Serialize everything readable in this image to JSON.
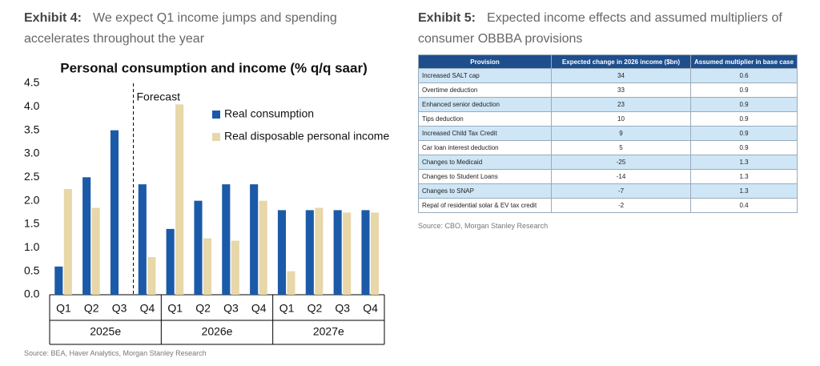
{
  "exhibit4": {
    "label": "Exhibit 4:",
    "text": "We expect Q1 income jumps and spending",
    "text2": "accelerates throughout the year",
    "source": "Source: BEA, Haver Analytics, Morgan Stanley Research"
  },
  "chart_data": {
    "type": "bar",
    "title": "Personal consumption and income (% q/q saar)",
    "categories": [
      "Q1",
      "Q2",
      "Q3",
      "Q4",
      "Q1",
      "Q2",
      "Q3",
      "Q4",
      "Q1",
      "Q2",
      "Q3",
      "Q4"
    ],
    "groups": [
      "2025e",
      "2026e",
      "2027e"
    ],
    "series": [
      {
        "name": "Real consumption",
        "color": "#1b5aa8",
        "values": [
          0.6,
          2.5,
          3.5,
          2.35,
          1.4,
          2.0,
          2.35,
          2.35,
          1.8,
          1.8,
          1.8,
          1.8
        ]
      },
      {
        "name": "Real disposable personal income",
        "color": "#e7d7a9",
        "values": [
          2.25,
          1.85,
          null,
          0.8,
          4.05,
          1.2,
          1.15,
          2.0,
          0.5,
          1.85,
          1.75,
          1.75
        ]
      }
    ],
    "annotation": "Forecast",
    "ylim": [
      0,
      4.5
    ],
    "yticks": [
      {
        "value": 0,
        "label": "0.0"
      },
      0.5,
      {
        "value": 1,
        "label": "1.0"
      },
      1.5,
      {
        "value": 2,
        "label": "2.0"
      },
      2.5,
      {
        "value": 3,
        "label": "3.0"
      },
      3.5,
      {
        "value": 4,
        "label": "4.0"
      },
      4.5
    ],
    "grid": false
  },
  "exhibit5": {
    "label": "Exhibit 5:",
    "text": "Expected income effects and assumed multipliers of",
    "text2": "consumer OBBBA provisions",
    "source": "Source: CBO, Morgan Stanley Research"
  },
  "table": {
    "header": [
      "Provision",
      "Expected change in 2026 income ($bn)",
      "Assumed multiplier in base case"
    ],
    "rows": [
      [
        "Increased SALT cap",
        34,
        0.6
      ],
      [
        "Overtime deduction",
        33,
        0.9
      ],
      [
        "Enhanced senior deduction",
        23,
        0.9
      ],
      [
        "Tips deduction",
        10,
        0.9
      ],
      [
        "Increased Child Tax Credit",
        9,
        0.9
      ],
      [
        "Car loan interest deduction",
        5,
        0.9
      ],
      [
        "Changes to Medicaid",
        -25,
        1.3
      ],
      [
        "Changes to Student Loans",
        -14,
        1.3
      ],
      [
        "Changes to SNAP",
        -7,
        1.3
      ],
      [
        "Repal of residential solar & EV tax credit",
        -2,
        0.4
      ]
    ]
  }
}
